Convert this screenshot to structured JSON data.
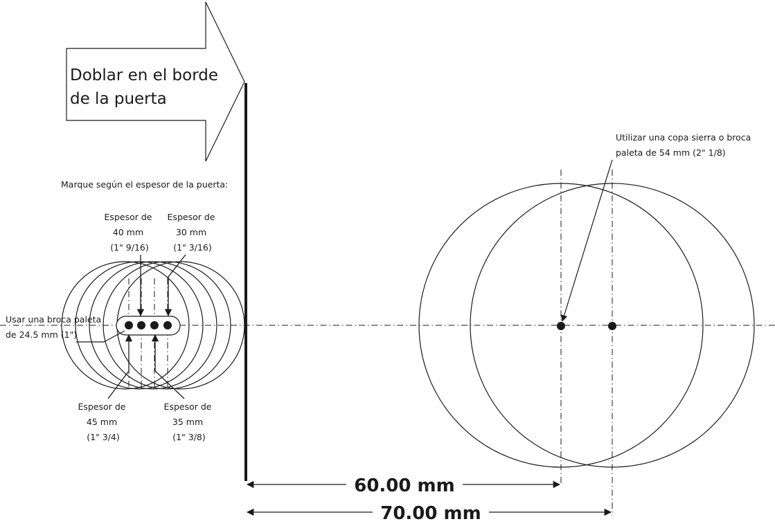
{
  "banner": {
    "line1": "Doblar en el borde",
    "line2": "de la puerta"
  },
  "instruction": "Marque según el espesor de  la puerta:",
  "thickness_labels": [
    {
      "lines": [
        "Espesor de",
        "40 mm",
        "(1\" 9/16)"
      ]
    },
    {
      "lines": [
        "Espesor de",
        "30 mm",
        "(1\" 3/16)"
      ]
    },
    {
      "lines": [
        "Espesor de",
        "45 mm",
        "(1\" 3/4)"
      ]
    },
    {
      "lines": [
        "Espesor de",
        "35 mm",
        "(1\" 3/8)"
      ]
    }
  ],
  "small_bit_note": {
    "line1": "Usar una broca paleta",
    "line2": "de 24.5 mm (1\")"
  },
  "large_bit_note": {
    "line1": "Utilizar una copa sierra o broca",
    "line2": "paleta de 54 mm (2\" 1/8)"
  },
  "dimensions": {
    "short": "60.00 mm",
    "long": "70.00 mm"
  }
}
